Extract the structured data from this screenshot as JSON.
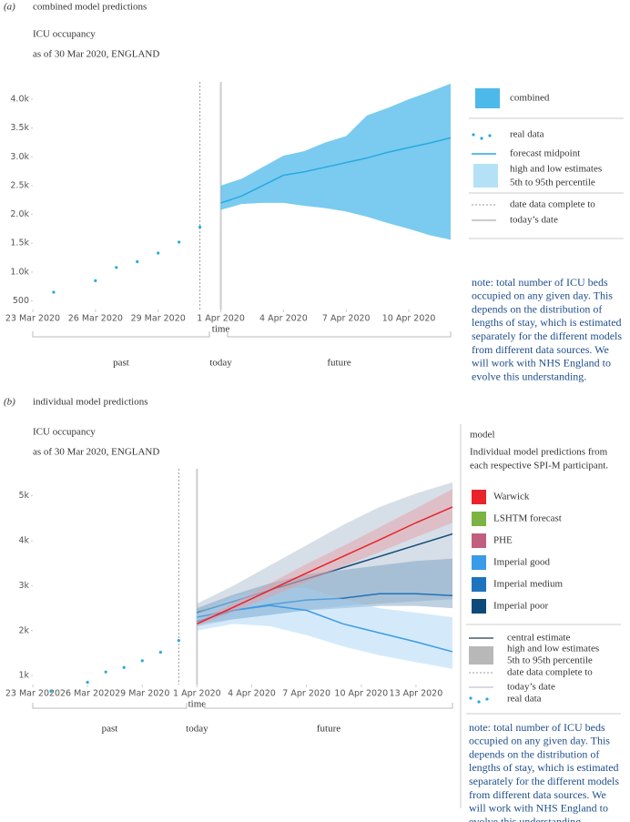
{
  "chart_data": [
    {
      "type": "line",
      "panel": "(a)",
      "heading": "combined model predictions",
      "title": "ICU occupancy",
      "subtitle": "as of 30 Mar 2020, ENGLAND",
      "x_label": "time",
      "eras": [
        "past",
        "today",
        "future"
      ],
      "xlim": [
        "2020-03-23",
        "2020-04-12"
      ],
      "xticks": [
        {
          "value": "2020-03-23",
          "label": "23 Mar 2020"
        },
        {
          "value": "2020-03-26",
          "label": "26 Mar 2020"
        },
        {
          "value": "2020-03-29",
          "label": "29 Mar 2020"
        },
        {
          "value": "2020-04-01",
          "label": "1 Apr 2020"
        },
        {
          "value": "2020-04-04",
          "label": "4 Apr 2020"
        },
        {
          "value": "2020-04-07",
          "label": "7 Apr 2020"
        },
        {
          "value": "2020-04-10",
          "label": "10 Apr 2020"
        }
      ],
      "ylim": [
        350,
        4300
      ],
      "yticks": [
        500,
        {
          "value": 1000,
          "label": "1.0k"
        },
        {
          "value": 1500,
          "label": "1.5k"
        },
        {
          "value": 2000,
          "label": "2.0k"
        },
        {
          "value": 2500,
          "label": "2.5k"
        },
        {
          "value": 3000,
          "label": "3.0k"
        },
        {
          "value": 3500,
          "label": "3.5k"
        },
        {
          "value": 4000,
          "label": "4.0k"
        }
      ],
      "date_complete": "2020-03-31",
      "today": "2020-04-01",
      "series": [
        {
          "name": "real data",
          "style": "points",
          "color": "#29a9e1",
          "x": [
            "2020-03-24",
            "2020-03-26",
            "2020-03-27",
            "2020-03-28",
            "2020-03-29",
            "2020-03-30",
            "2020-03-31"
          ],
          "values": [
            650,
            850,
            1080,
            1180,
            1330,
            1520,
            1780
          ]
        },
        {
          "name": "forecast midpoint",
          "style": "line",
          "color": "#29a9e1",
          "band_color": "#4db9ea",
          "x": [
            "2020-04-01",
            "2020-04-02",
            "2020-04-03",
            "2020-04-04",
            "2020-04-05",
            "2020-04-06",
            "2020-04-07",
            "2020-04-08",
            "2020-04-09",
            "2020-04-10",
            "2020-04-11",
            "2020-04-12"
          ],
          "values": [
            2200,
            2320,
            2500,
            2680,
            2740,
            2820,
            2900,
            2980,
            3080,
            3160,
            3240,
            3330
          ],
          "low": [
            2080,
            2180,
            2200,
            2200,
            2150,
            2110,
            2050,
            1960,
            1850,
            1750,
            1640,
            1560
          ],
          "high": [
            2500,
            2620,
            2820,
            3020,
            3100,
            3250,
            3360,
            3720,
            3850,
            4000,
            4130,
            4270
          ]
        }
      ],
      "band_label": "combined",
      "band_legend": [
        "high and low estimates",
        "5th to 95th percentile"
      ],
      "band_legend_color": "#b5e1f7",
      "date_complete_label": "date data complete to",
      "today_label": "today’s date",
      "note": [
        "note: total number of ICU beds",
        "occupied on any given day. This",
        "depends on the distribution of",
        "lengths of stay, which is estimated",
        "separately for the different models",
        "from different data sources. We",
        "will work with NHS England to",
        "evolve this understanding."
      ]
    },
    {
      "type": "line",
      "panel": "(b)",
      "heading": "individual model predictions",
      "title": "ICU occupancy",
      "subtitle": "as of 30 Mar 2020, ENGLAND",
      "x_label": "time",
      "eras": [
        "past",
        "today",
        "future"
      ],
      "xlim": [
        "2020-03-23",
        "2020-04-15"
      ],
      "xticks": [
        {
          "value": "2020-03-23",
          "label": "23 Mar 2020"
        },
        {
          "value": "2020-03-26",
          "label": "26 Mar 2020"
        },
        {
          "value": "2020-03-29",
          "label": "29 Mar 2020"
        },
        {
          "value": "2020-04-01",
          "label": "1 Apr 2020"
        },
        {
          "value": "2020-04-04",
          "label": "4 Apr 2020"
        },
        {
          "value": "2020-04-07",
          "label": "7 Apr 2020"
        },
        {
          "value": "2020-04-10",
          "label": "10 Apr 2020"
        },
        {
          "value": "2020-04-13",
          "label": "13 Apr 2020"
        }
      ],
      "ylim": [
        800,
        5600
      ],
      "yticks": [
        {
          "value": 1000,
          "label": "1k"
        },
        {
          "value": 2000,
          "label": "2k"
        },
        {
          "value": 3000,
          "label": "3k"
        },
        {
          "value": 4000,
          "label": "4k"
        },
        {
          "value": 5000,
          "label": "5k"
        }
      ],
      "date_complete": "2020-03-31",
      "today": "2020-04-01",
      "series": [
        {
          "name": "real data",
          "style": "points",
          "color": "#29a9e1",
          "x": [
            "2020-03-24",
            "2020-03-26",
            "2020-03-27",
            "2020-03-28",
            "2020-03-29",
            "2020-03-30",
            "2020-03-31"
          ],
          "values": [
            650,
            850,
            1080,
            1180,
            1330,
            1520,
            1780
          ]
        },
        {
          "name": "Imperial poor",
          "style": "line",
          "color": "#0d4a7a",
          "band_color": "#a3b6c9",
          "x": [
            "2020-04-01",
            "2020-04-03",
            "2020-04-05",
            "2020-04-07",
            "2020-04-09",
            "2020-04-11",
            "2020-04-13",
            "2020-04-15"
          ],
          "values": [
            2400,
            2650,
            2900,
            3150,
            3400,
            3650,
            3900,
            4150
          ],
          "low": [
            2150,
            2250,
            2350,
            2450,
            2550,
            2600,
            2650,
            2700
          ],
          "high": [
            2600,
            3000,
            3450,
            3900,
            4350,
            4750,
            5050,
            5300
          ]
        },
        {
          "name": "Imperial medium",
          "style": "line",
          "color": "#1e73be",
          "band_color": "#6f98bd",
          "x": [
            "2020-04-01",
            "2020-04-03",
            "2020-04-05",
            "2020-04-07",
            "2020-04-09",
            "2020-04-11",
            "2020-04-13",
            "2020-04-15"
          ],
          "values": [
            2300,
            2450,
            2580,
            2680,
            2720,
            2820,
            2820,
            2780
          ],
          "low": [
            2100,
            2250,
            2350,
            2450,
            2500,
            2550,
            2550,
            2500
          ],
          "high": [
            2500,
            2800,
            3050,
            3250,
            3350,
            3450,
            3550,
            3600
          ]
        },
        {
          "name": "Imperial good",
          "style": "line",
          "color": "#3a9be8",
          "band_color": "#9fd0f3",
          "x": [
            "2020-04-01",
            "2020-04-03",
            "2020-04-05",
            "2020-04-07",
            "2020-04-09",
            "2020-04-11",
            "2020-04-13",
            "2020-04-15"
          ],
          "values": [
            2200,
            2450,
            2560,
            2450,
            2150,
            1950,
            1750,
            1530
          ],
          "low": [
            2000,
            2150,
            2100,
            1900,
            1650,
            1450,
            1300,
            1150
          ],
          "high": [
            2400,
            2750,
            2950,
            2950,
            2700,
            2500,
            2400,
            2300
          ]
        },
        {
          "name": "PHE",
          "style": "line",
          "color": "#c0607e"
        },
        {
          "name": "LSHTM forecast",
          "style": "line",
          "color": "#7cb342"
        },
        {
          "name": "Warwick",
          "style": "line",
          "color": "#e8232a",
          "band_color": "#e89aa0",
          "x": [
            "2020-04-01",
            "2020-04-03",
            "2020-04-05",
            "2020-04-07",
            "2020-04-09",
            "2020-04-11",
            "2020-04-13",
            "2020-04-15"
          ],
          "values": [
            2150,
            2520,
            2900,
            3280,
            3650,
            4020,
            4400,
            4750
          ],
          "low": [
            2100,
            2420,
            2750,
            3080,
            3420,
            3750,
            4080,
            4400
          ],
          "high": [
            2200,
            2620,
            3050,
            3480,
            3880,
            4300,
            4720,
            5150
          ]
        }
      ],
      "legend_title": "model",
      "legend_subtitle": [
        "Individual model predictions from",
        "each respective SPI-M participant."
      ],
      "central_label": "central estimate",
      "central_color": "#4a5a6e",
      "band_legend": [
        "high and low estimates",
        "5th to 95th percentile"
      ],
      "band_legend_color": "#b8b8b8",
      "date_complete_label": "date data complete to",
      "today_label": "today’s date",
      "note": [
        "note: total number of ICU beds",
        "occupied on any given day. This",
        "depends on the distribution of",
        "lengths of stay, which is estimated",
        "separately for the different models",
        "from different data sources. We",
        "will work with NHS England to",
        "evolve this understanding."
      ]
    }
  ]
}
